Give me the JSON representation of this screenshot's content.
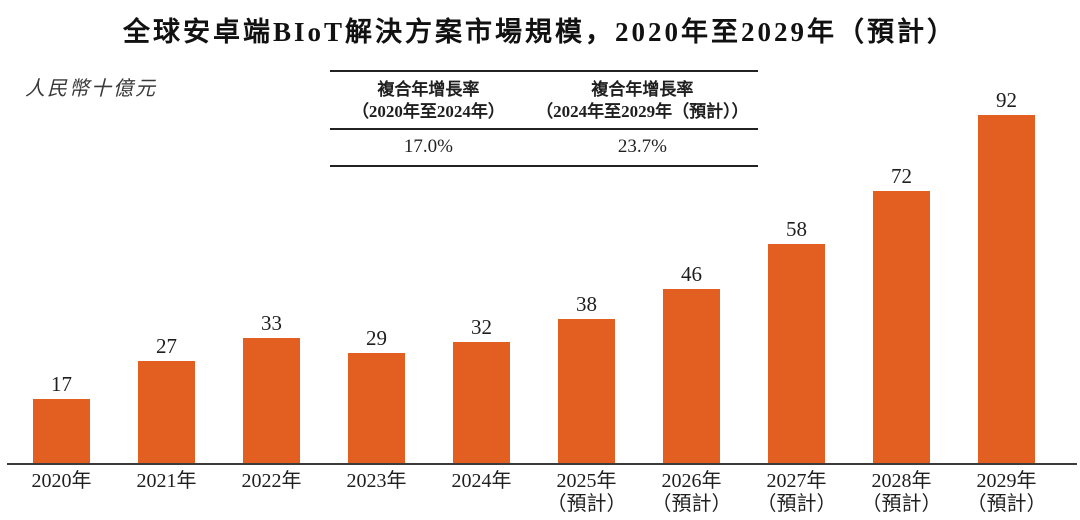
{
  "title": "全球安卓端BIoT解決方案市場規模，2020年至2029年（預計）",
  "unit_label": "人民幣十億元",
  "cagr_table": {
    "columns": [
      {
        "header_line1": "複合年增長率",
        "header_line2": "（2020年至2024年）",
        "value": "17.0%"
      },
      {
        "header_line1": "複合年增長率",
        "header_line2": "（2024年至2029年（預計））",
        "value": "23.7%"
      }
    ]
  },
  "chart_data": {
    "type": "bar",
    "title": "全球安卓端BIoT解決方案市場規模，2020年至2029年（預計）",
    "ylabel": "人民幣十億元",
    "xlabel": "",
    "categories": [
      [
        "2020年"
      ],
      [
        "2021年"
      ],
      [
        "2022年"
      ],
      [
        "2023年"
      ],
      [
        "2024年"
      ],
      [
        "2025年",
        "（預計）"
      ],
      [
        "2026年",
        "（預計）"
      ],
      [
        "2027年",
        "（預計）"
      ],
      [
        "2028年",
        "（預計）"
      ],
      [
        "2029年",
        "（預計）"
      ]
    ],
    "values": [
      17,
      27,
      33,
      29,
      32,
      38,
      46,
      58,
      72,
      92
    ],
    "ylim": [
      0,
      95
    ],
    "grid": false,
    "legend": "none",
    "bar_color": "#E25E21",
    "axis_color": "#3B3B3B",
    "text_color": "#1F1F1F"
  }
}
